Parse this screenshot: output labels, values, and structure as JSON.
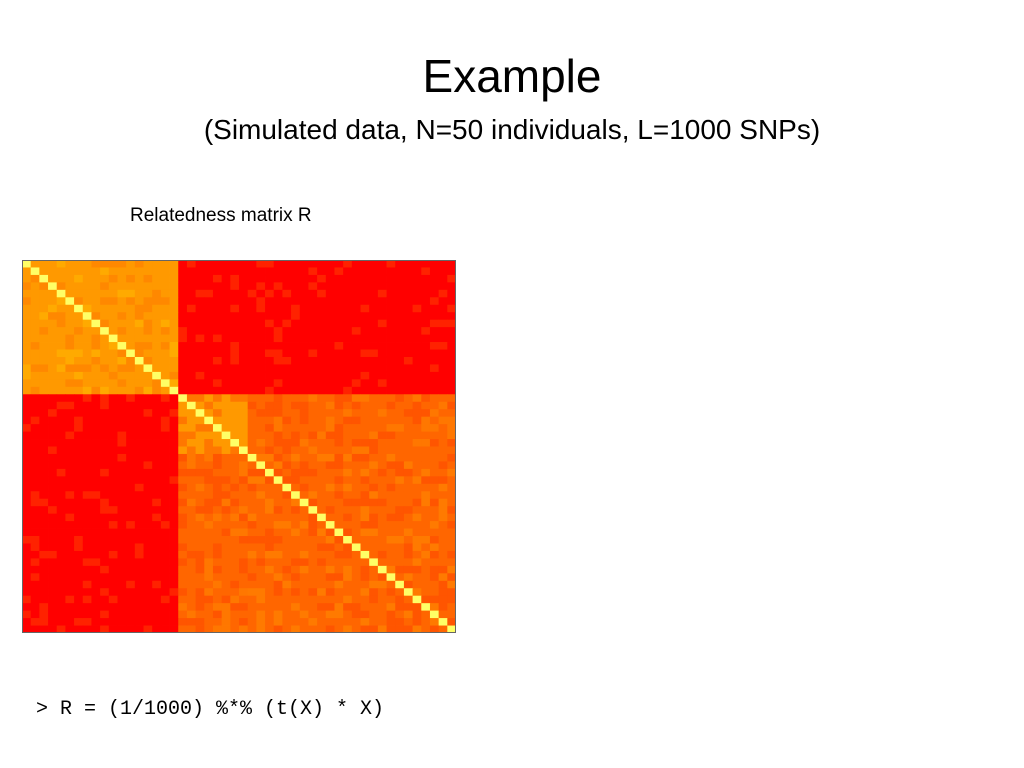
{
  "slide": {
    "title": "Example",
    "subtitle": "(Simulated data, N=50 individuals, L=1000 SNPs)",
    "code": "> R = (1/1000) %*% (t(X) * X)"
  },
  "colors": {
    "diagonal": "#ffff66",
    "within_group_high": "#ff9900",
    "within_group_mid": "#ff6600",
    "between_group": "#ff0000",
    "border": "#666666"
  },
  "chart_data": {
    "type": "heatmap",
    "title": "Relatedness matrix R",
    "n": 50,
    "xlabel": "",
    "ylabel": "",
    "legend": "none",
    "grid": false,
    "colormap": "heat (red-orange-yellow)",
    "blocks": [
      {
        "start": 1,
        "end": 18,
        "mean_value": 0.55
      },
      {
        "start": 19,
        "end": 26,
        "mean_value": 0.5
      },
      {
        "start": 27,
        "end": 50,
        "mean_value": 0.3
      }
    ],
    "off_block_values": [
      {
        "rows": [
          1,
          18
        ],
        "cols": [
          19,
          50
        ],
        "mean_value": 0.05
      },
      {
        "rows": [
          19,
          26
        ],
        "cols": [
          27,
          50
        ],
        "mean_value": 0.3
      }
    ],
    "diagonal_value": 1.0
  }
}
